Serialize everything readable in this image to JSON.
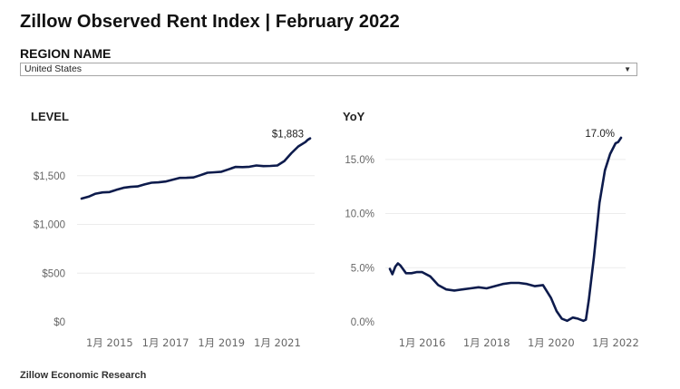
{
  "header": {
    "title": "Zillow Observed Rent Index | February 2022"
  },
  "region": {
    "label": "REGION NAME",
    "selected": "United States",
    "caret_icon": "chevron-down-icon"
  },
  "footer": {
    "text": "Zillow Economic Research"
  },
  "colors": {
    "line": "#0d1b4c",
    "grid": "#ececec",
    "tick": "#666666"
  },
  "chart_data": [
    {
      "type": "line",
      "title": "LEVEL",
      "xlabel": "",
      "ylabel": "",
      "xlim": [
        2014.0,
        2022.17
      ],
      "ylim": [
        0,
        2000
      ],
      "yticks": [
        0,
        500,
        1000,
        1500
      ],
      "yticklabels": [
        "$0",
        "$500",
        "$1,000",
        "$1,500"
      ],
      "xticks": [
        2015.0,
        2017.0,
        2019.0,
        2021.0
      ],
      "xticklabels": [
        "1月 2015",
        "1月 2017",
        "1月 2019",
        "1月 2021"
      ],
      "grid": true,
      "end_label": "$1,883",
      "series": [
        {
          "x": [
            2014.0,
            2014.25,
            2014.5,
            2014.75,
            2015.0,
            2015.25,
            2015.5,
            2015.75,
            2016.0,
            2016.25,
            2016.5,
            2016.75,
            2017.0,
            2017.25,
            2017.5,
            2017.75,
            2018.0,
            2018.25,
            2018.5,
            2018.75,
            2019.0,
            2019.25,
            2019.5,
            2019.75,
            2020.0,
            2020.25,
            2020.5,
            2020.75,
            2021.0,
            2021.25,
            2021.5,
            2021.75,
            2022.0,
            2022.08,
            2022.17
          ],
          "y": [
            1265,
            1285,
            1315,
            1328,
            1332,
            1355,
            1376,
            1385,
            1390,
            1410,
            1428,
            1432,
            1440,
            1458,
            1477,
            1478,
            1482,
            1505,
            1530,
            1535,
            1540,
            1565,
            1590,
            1588,
            1592,
            1605,
            1598,
            1600,
            1605,
            1650,
            1730,
            1800,
            1845,
            1866,
            1883
          ]
        }
      ]
    },
    {
      "type": "line",
      "title": "YoY",
      "xlabel": "",
      "ylabel": "",
      "xlim": [
        2015.0,
        2022.17
      ],
      "ylim": [
        0,
        0.18
      ],
      "yticks": [
        0,
        0.05,
        0.1,
        0.15
      ],
      "yticklabels": [
        "0.0%",
        "5.0%",
        "10.0%",
        "15.0%"
      ],
      "xticks": [
        2016.0,
        2018.0,
        2020.0,
        2022.0
      ],
      "xticklabels": [
        "1月 2016",
        "1月 2018",
        "1月 2020",
        "1月 2022"
      ],
      "grid": true,
      "end_label": "17.0%",
      "series": [
        {
          "x": [
            2015.0,
            2015.08,
            2015.17,
            2015.25,
            2015.33,
            2015.5,
            2015.67,
            2015.83,
            2016.0,
            2016.25,
            2016.5,
            2016.75,
            2017.0,
            2017.25,
            2017.5,
            2017.75,
            2018.0,
            2018.25,
            2018.5,
            2018.75,
            2019.0,
            2019.25,
            2019.5,
            2019.75,
            2020.0,
            2020.17,
            2020.33,
            2020.5,
            2020.67,
            2020.83,
            2021.0,
            2021.08,
            2021.17,
            2021.33,
            2021.5,
            2021.67,
            2021.83,
            2022.0,
            2022.08,
            2022.17
          ],
          "y": [
            0.049,
            0.044,
            0.051,
            0.054,
            0.052,
            0.045,
            0.045,
            0.046,
            0.046,
            0.042,
            0.034,
            0.03,
            0.029,
            0.03,
            0.031,
            0.032,
            0.031,
            0.033,
            0.035,
            0.036,
            0.036,
            0.035,
            0.033,
            0.034,
            0.022,
            0.01,
            0.003,
            0.001,
            0.004,
            0.003,
            0.001,
            0.002,
            0.02,
            0.06,
            0.11,
            0.14,
            0.155,
            0.165,
            0.166,
            0.17
          ]
        }
      ]
    }
  ]
}
